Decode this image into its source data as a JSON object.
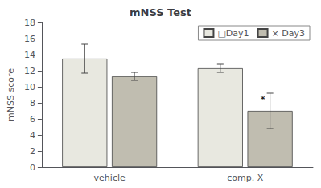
{
  "chart_data": {
    "type": "bar",
    "title": "mNSS Test",
    "ylabel": "mNSS score",
    "categories": [
      "vehicle",
      "comp. X"
    ],
    "series": [
      {
        "name": "□Day1",
        "color": "#e8e8e0",
        "values": [
          13.5,
          12.3
        ],
        "errors": [
          1.8,
          0.5
        ]
      },
      {
        "name": "× Day3",
        "color": "#c0bdb0",
        "values": [
          11.3,
          7.0
        ],
        "errors": [
          0.5,
          2.2
        ]
      }
    ],
    "ylim": [
      0,
      18
    ],
    "yticks": [
      0,
      2,
      4,
      6,
      8,
      10,
      12,
      14,
      16,
      18
    ],
    "grid": false,
    "legend": "upper right",
    "annotations": [
      {
        "text": "*",
        "category": "comp. X",
        "series": "× Day3"
      }
    ]
  }
}
